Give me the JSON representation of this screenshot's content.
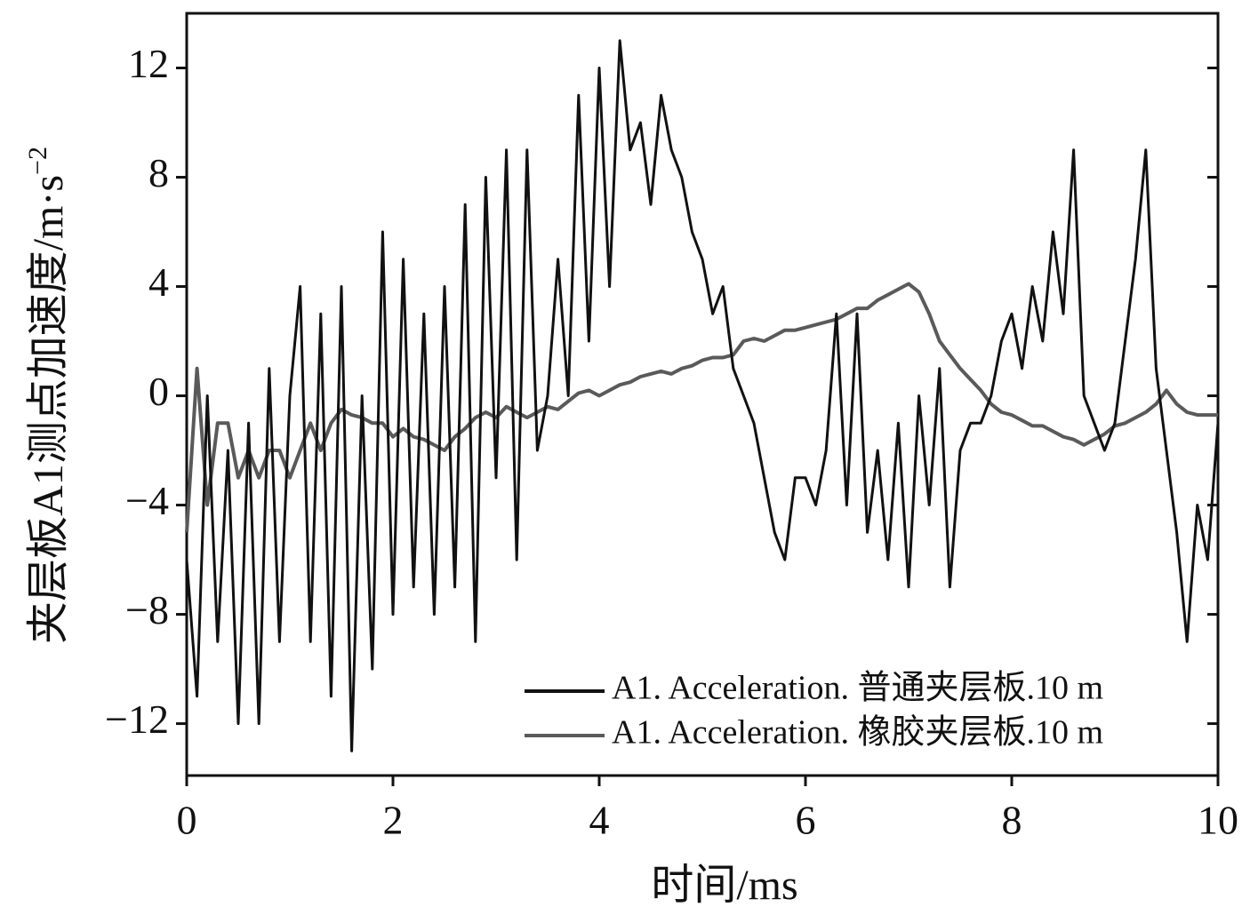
{
  "chart_data": {
    "type": "line",
    "x_label": "时间/ms",
    "y_label": "夹层板A1测点加速度/m·s",
    "y_label_sup": "−2",
    "xlim": [
      0,
      10
    ],
    "xticks": [
      0,
      2,
      4,
      6,
      8,
      10
    ],
    "ylim": [
      -13.9,
      14.0
    ],
    "yticks": [
      {
        "value": -12,
        "label": "−12"
      },
      {
        "value": -8,
        "label": "−8"
      },
      {
        "value": -4,
        "label": "−4"
      },
      0,
      4,
      8,
      12
    ],
    "legend": "lower right",
    "x": [
      0,
      0.1,
      0.2,
      0.3,
      0.4,
      0.5,
      0.6,
      0.7,
      0.8,
      0.9,
      1,
      1.1,
      1.2,
      1.3,
      1.4,
      1.5,
      1.6,
      1.7,
      1.8,
      1.9,
      2,
      2.1,
      2.2,
      2.3,
      2.4,
      2.5,
      2.6,
      2.7,
      2.8,
      2.9,
      3,
      3.1,
      3.2,
      3.3,
      3.4,
      3.5,
      3.6,
      3.7,
      3.8,
      3.9,
      4,
      4.1,
      4.2,
      4.3,
      4.4,
      4.5,
      4.6,
      4.7,
      4.8,
      4.9,
      5,
      5.1,
      5.2,
      5.3,
      5.4,
      5.5,
      5.6,
      5.7,
      5.8,
      5.9,
      6,
      6.1,
      6.2,
      6.3,
      6.4,
      6.5,
      6.6,
      6.7,
      6.8,
      6.9,
      7,
      7.1,
      7.2,
      7.3,
      7.4,
      7.5,
      7.6,
      7.7,
      7.8,
      7.9,
      8,
      8.1,
      8.2,
      8.3,
      8.4,
      8.5,
      8.6,
      8.7,
      8.8,
      8.9,
      9,
      9.1,
      9.2,
      9.3,
      9.4,
      9.5,
      9.6,
      9.7,
      9.8,
      9.9,
      10
    ],
    "series": [
      {
        "name": "A1. Acceleration. 普通夹层板.10 m",
        "color": "#111111",
        "values": [
          -6,
          -11,
          0,
          -9,
          -2,
          -12,
          -1,
          -12,
          1,
          -9,
          0,
          4,
          -9,
          3,
          -11,
          4,
          -13,
          0,
          -10,
          6,
          -8,
          5,
          -7,
          3,
          -8,
          4,
          -7,
          7,
          -9,
          8,
          -3,
          9,
          -6,
          9,
          -2,
          0,
          5,
          0,
          11,
          2,
          12,
          4,
          13,
          9,
          10,
          7,
          11,
          9,
          8,
          6,
          5,
          3,
          4,
          1,
          0,
          -1,
          -3,
          -5,
          -6,
          -3,
          -3,
          -4,
          -2,
          3,
          -4,
          3,
          -5,
          -2,
          -6,
          -1,
          -7,
          0,
          -4,
          1,
          -7,
          -2,
          -1,
          -1,
          0,
          2,
          3,
          1,
          4,
          2,
          6,
          3,
          9,
          0,
          -1,
          -2,
          -1,
          2,
          5,
          9,
          1,
          -2,
          -5,
          -9,
          -4,
          -6,
          -1
        ]
      },
      {
        "name": "A1. Acceleration. 橡胶夹层板.10 m",
        "color": "#5a5a5a",
        "values": [
          -5,
          1,
          -4,
          -1,
          -1,
          -3,
          -2,
          -3,
          -2,
          -2,
          -3,
          -2,
          -1,
          -2,
          -1,
          -0.5,
          -0.7,
          -0.8,
          -1,
          -1,
          -1.5,
          -1.2,
          -1.5,
          -1.6,
          -1.8,
          -2,
          -1.5,
          -1.2,
          -0.8,
          -0.6,
          -0.8,
          -0.4,
          -0.6,
          -0.8,
          -0.6,
          -0.4,
          -0.5,
          -0.2,
          0.1,
          0.2,
          0,
          0.2,
          0.4,
          0.5,
          0.7,
          0.8,
          0.9,
          0.8,
          1,
          1.1,
          1.3,
          1.4,
          1.4,
          1.5,
          2,
          2.1,
          2,
          2.2,
          2.4,
          2.4,
          2.5,
          2.6,
          2.7,
          2.8,
          3,
          3.2,
          3.2,
          3.5,
          3.7,
          3.9,
          4.1,
          3.8,
          3,
          2,
          1.5,
          1,
          0.6,
          0.2,
          -0.3,
          -0.6,
          -0.7,
          -0.9,
          -1.1,
          -1.1,
          -1.3,
          -1.5,
          -1.6,
          -1.8,
          -1.6,
          -1.4,
          -1.1,
          -1,
          -0.8,
          -0.6,
          -0.3,
          0.2,
          -0.3,
          -0.6,
          -0.7,
          -0.7,
          -0.7
        ]
      }
    ]
  }
}
